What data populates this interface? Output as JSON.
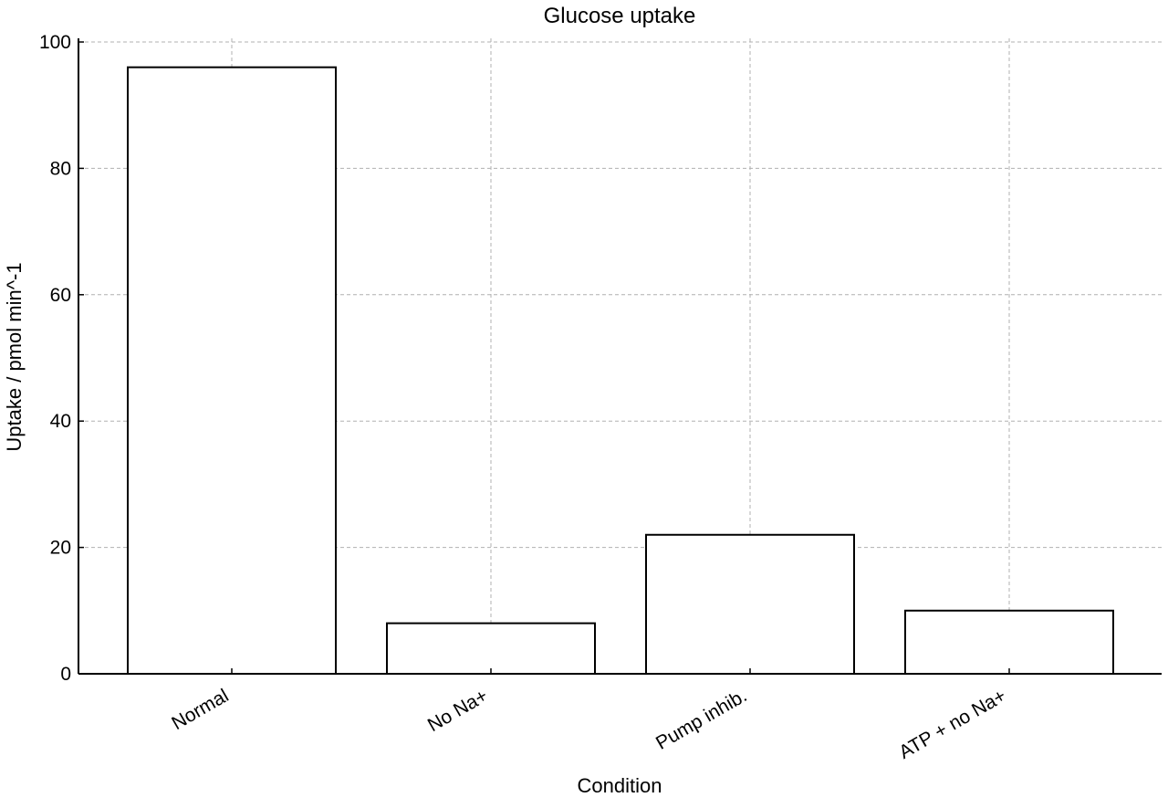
{
  "chart_data": {
    "type": "bar",
    "title": "Glucose uptake",
    "xlabel": "Condition",
    "ylabel": "Uptake / pmol min^-1",
    "categories": [
      "Normal",
      "No Na+",
      "Pump inhib.",
      "ATP + no Na+"
    ],
    "values": [
      96,
      8,
      22,
      10
    ],
    "ylim": [
      0,
      100
    ],
    "yticks": [
      0,
      20,
      40,
      60,
      80,
      100
    ],
    "grid": true,
    "bar_fill": "#ffffff",
    "bar_edge": "#000000",
    "grid_color": "#b0b0b0"
  }
}
